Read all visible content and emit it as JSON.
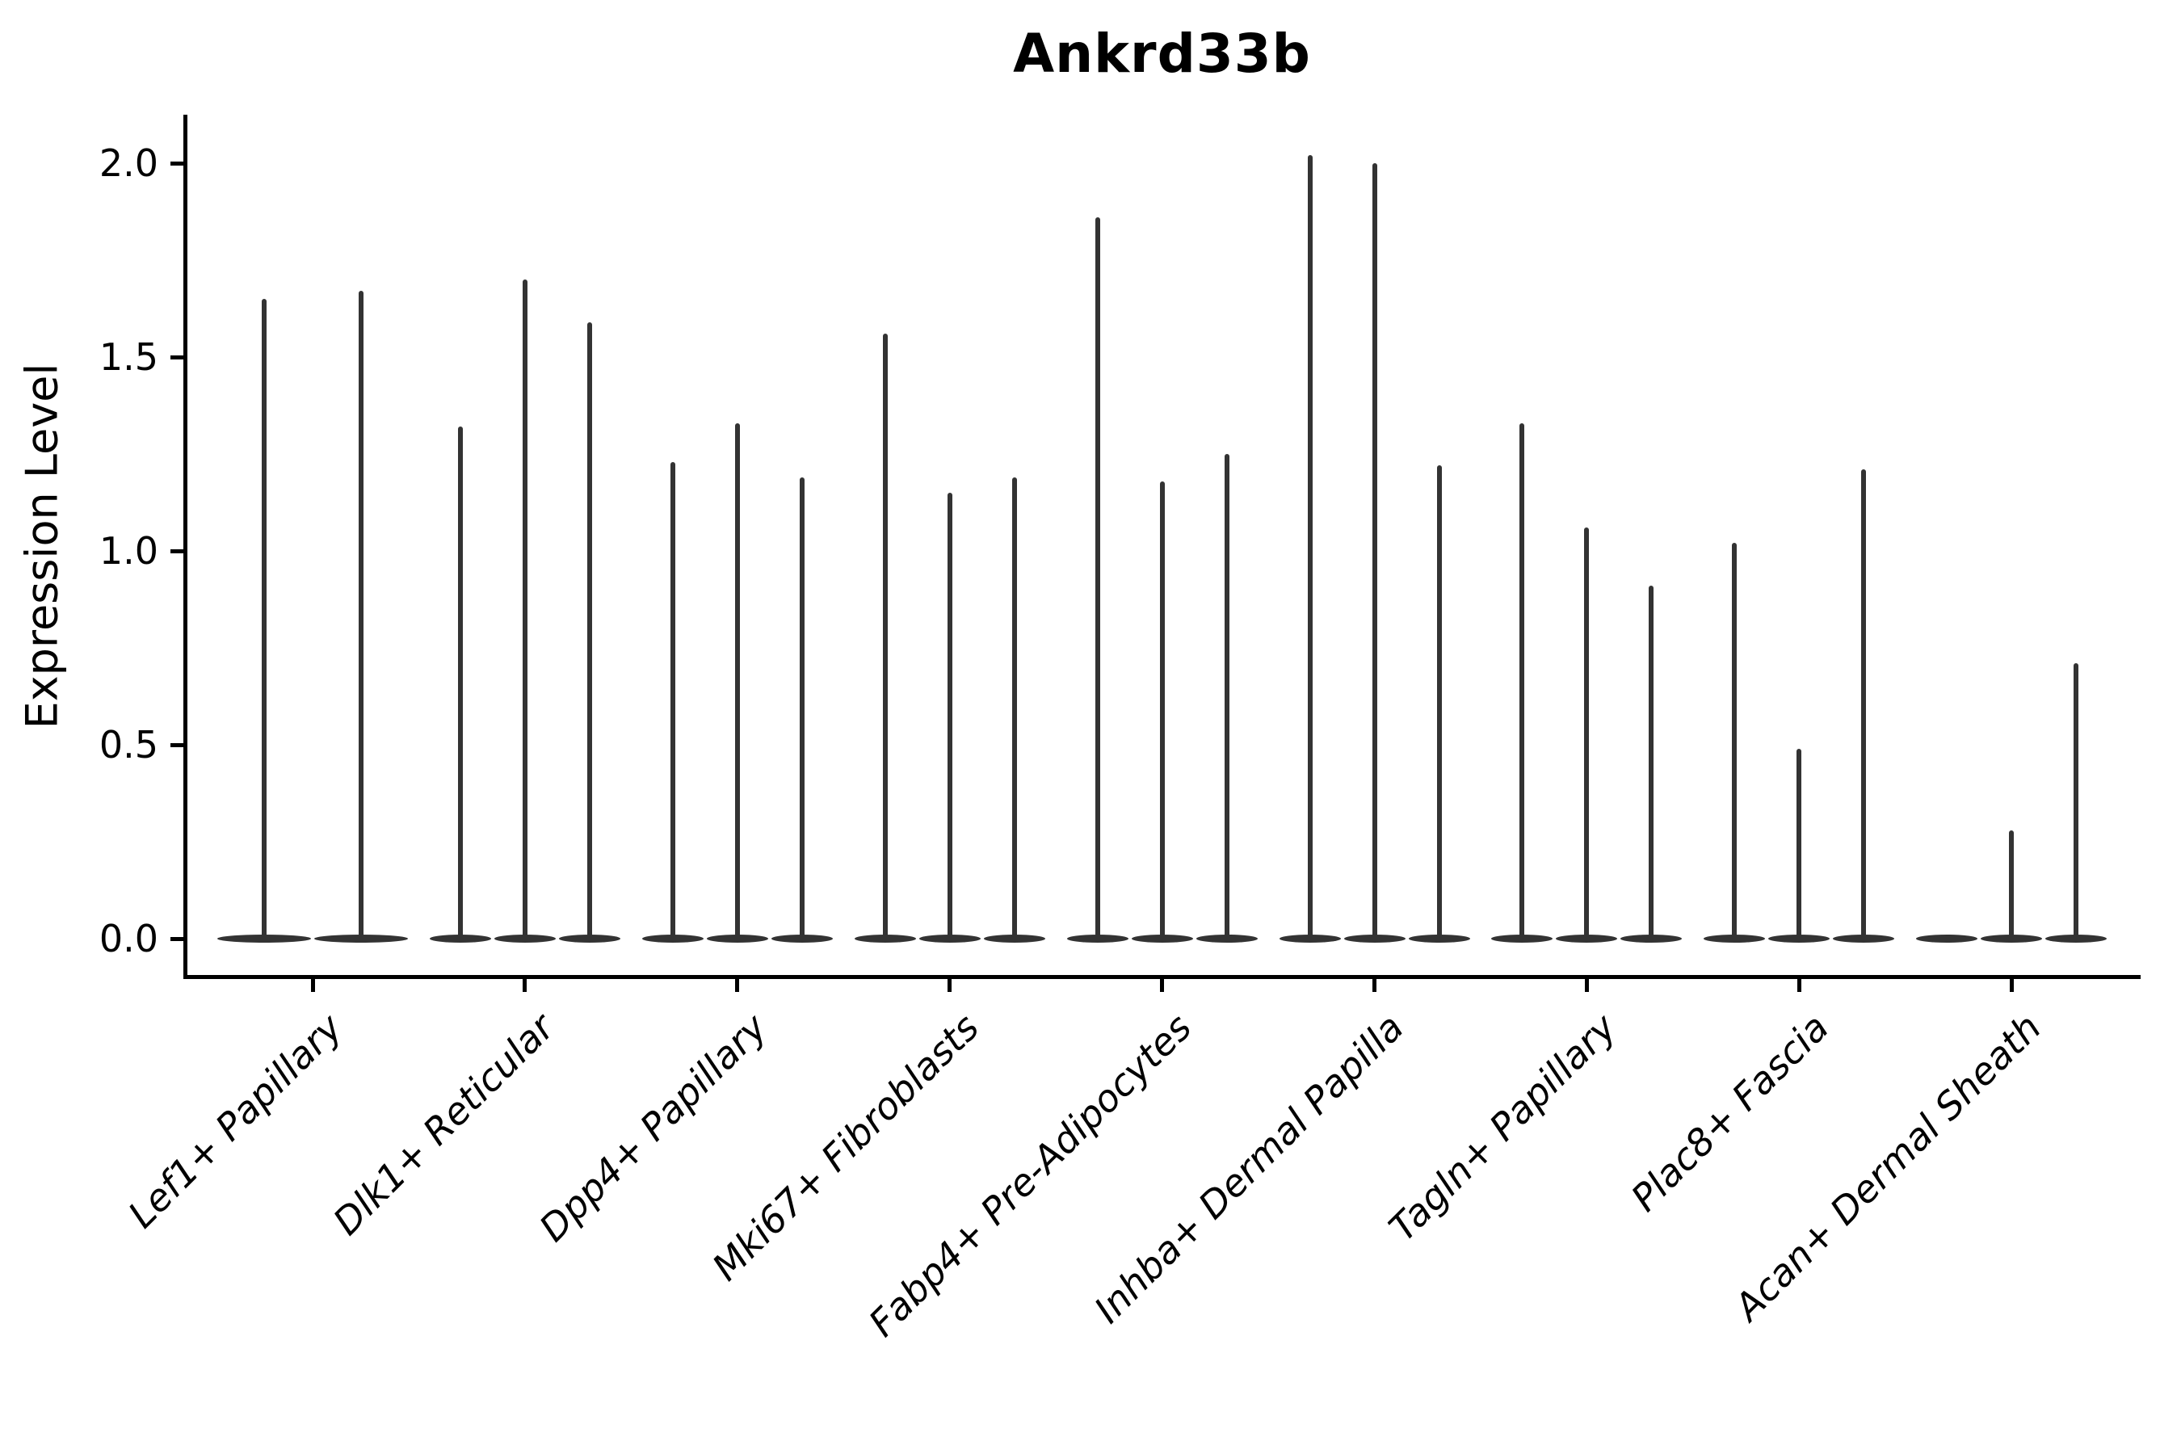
{
  "figure": {
    "title": "Ankrd33b",
    "ylabel": "Expression Level"
  },
  "chart_data": {
    "type": "violin",
    "title": "Ankrd33b",
    "xlabel": "",
    "ylabel": "Expression Level",
    "ylim": [
      -0.1,
      2.13
    ],
    "ytick_values": [
      0,
      0.5,
      1,
      1.5,
      2
    ],
    "ytick_labels": [
      "0.0",
      "0.5",
      "1.0",
      "1.5",
      "2.0"
    ],
    "grid": false,
    "legend_position": "none",
    "background_color": "#ffffff",
    "violin_color": "#333333",
    "axis_color": "#000000",
    "categories": [
      "Lef1+ Papillary",
      "Dlk1+ Reticular",
      "Dpp4+ Papillary",
      "Mki67+ Fibroblasts",
      "Fabp4+ Pre-Adipocytes",
      "Inhba+ Dermal Papilla",
      "Tagln+ Papillary",
      "Plac8+ Fascia",
      "Acan+ Dermal Sheath"
    ],
    "spike_values": [
      [
        1.65,
        1.67
      ],
      [
        1.32,
        1.7,
        1.59
      ],
      [
        1.23,
        1.33,
        1.19
      ],
      [
        1.56,
        1.15,
        1.19
      ],
      [
        1.86,
        1.18,
        1.25
      ],
      [
        2.02,
        2.0,
        1.22
      ],
      [
        1.33,
        1.06,
        0.91
      ],
      [
        1.02,
        0.49,
        1.21
      ],
      [
        null,
        0.28,
        0.71
      ]
    ],
    "value_description": "Peak expression level of each needle-thin violin; every violin is a flat pancake at 0 with a narrow vertical spike rising to its peak. null = violin present but flat at 0 (no spike)."
  }
}
